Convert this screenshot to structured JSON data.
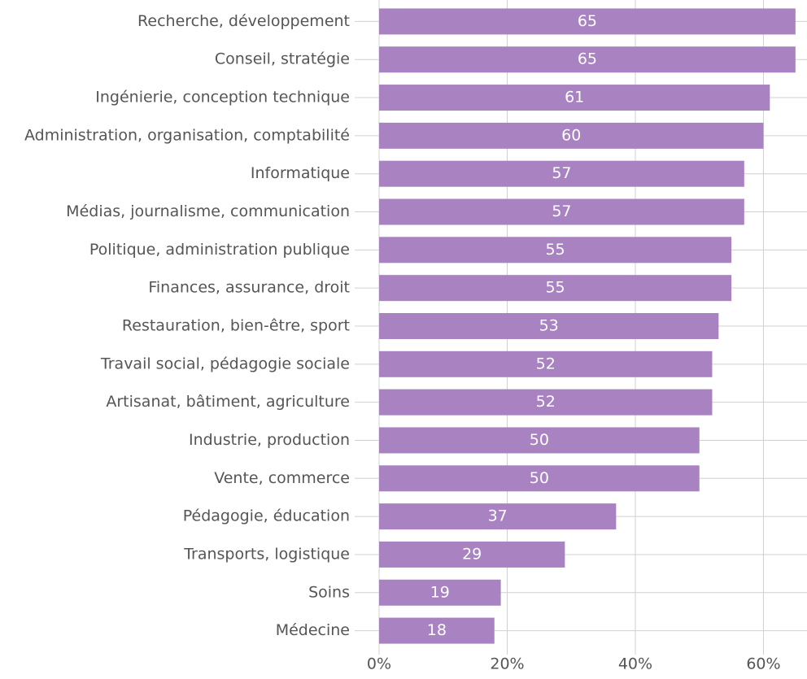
{
  "chart_data": {
    "type": "barh",
    "categories": [
      "Recherche, développement",
      "Conseil, stratégie",
      "Ingénierie, conception technique",
      "Administration, organisation, comptabilité",
      "Informatique",
      "Médias, journalisme, communication",
      "Politique, administration publique",
      "Finances, assurance, droit",
      "Restauration, bien-être, sport",
      "Travail social, pédagogie sociale",
      "Artisanat, bâtiment, agriculture",
      "Industrie, production",
      "Vente, commerce",
      "Pédagogie, éducation",
      "Transports, logistique",
      "Soins",
      "Médecine"
    ],
    "values": [
      65,
      65,
      61,
      60,
      57,
      57,
      55,
      55,
      53,
      52,
      52,
      50,
      50,
      37,
      29,
      19,
      18
    ],
    "color": "#a882c1",
    "xlim": [
      0,
      66.8
    ],
    "xticks": [
      {
        "value": 0,
        "label": "0%"
      },
      {
        "value": 20,
        "label": "20%"
      },
      {
        "value": 40,
        "label": "40%"
      },
      {
        "value": 60,
        "label": "60%"
      }
    ],
    "grid": true
  }
}
